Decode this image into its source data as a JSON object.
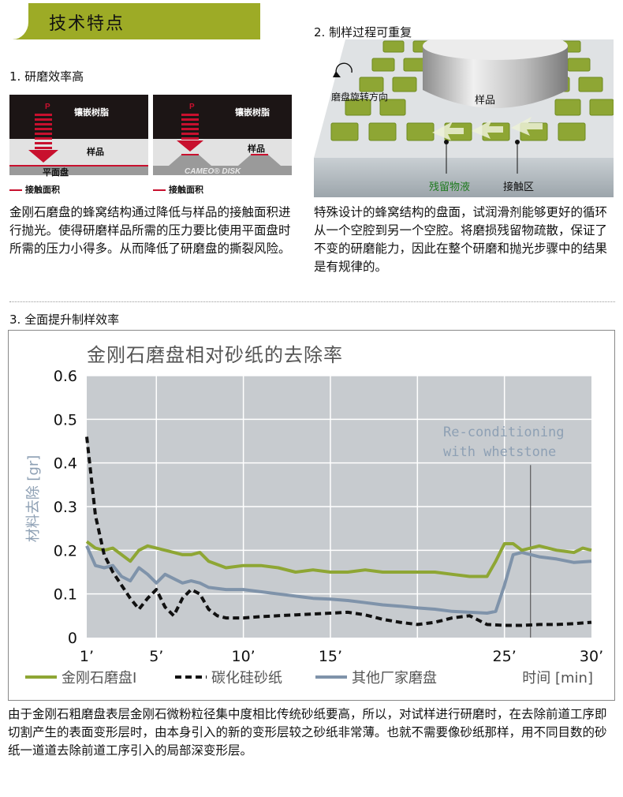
{
  "header": {
    "title": "技术特点"
  },
  "section1": {
    "heading": "1. 研磨效率高",
    "left_panel": {
      "p_label": "P",
      "resin": "镶嵌树脂",
      "sample": "样品",
      "plate": "平面盘",
      "legend": "接触面积"
    },
    "right_panel": {
      "p_label": "P",
      "resin": "镶嵌树脂",
      "sample": "样品",
      "brand": "CAMEO® DISK",
      "legend": "接触面积"
    },
    "paragraph": "金刚石磨盘的蜂窝结构通过降低与样品的接触面积进行抛光。使得研磨样品所需的压力要比使用平面盘时所需的压力小得多。从而降低了研磨盘的撕裂风险。"
  },
  "section2": {
    "heading": "2. 制样过程可重复",
    "labels": {
      "rotation": "磨盘旋转方向",
      "sample": "样品",
      "residue": "残留物液",
      "contact": "接触区"
    },
    "paragraph": "特殊设计的蜂窝结构的盘面，试润滑剂能够更好的循环从一个空腔到另一个空腔。将磨损残留物疏散，保证了不变的研磨能力，因此在整个研磨和抛光步骤中的结果是有规律的。"
  },
  "section3": {
    "heading": "3. 全面提升制样效率",
    "paragraph": "由于金刚石粗磨盘表层金刚石微粉粒径集中度相比传统砂纸要高，所以，对试样进行研磨时，在去除前道工序即切割产生的表面变形层时，由本身引入的新的变形层较之砂纸非常薄。也就不需要像砂纸那样，用不同目数的砂纸一道道去除前道工序引入的局部深变形层。"
  },
  "colors": {
    "accent": "#9dab26",
    "green_series": "#8ea634",
    "blue_series": "#7f93aa",
    "black_series": "#111111",
    "plot_bg": "#c7cbcf",
    "red": "#c8102e"
  },
  "chart_data": {
    "type": "line",
    "title": "金刚石磨盘相对砂纸的去除率",
    "ylabel": "材料去除 [gr]",
    "xlabel": "时间 [min]",
    "ylim": [
      0,
      0.6
    ],
    "xlim": [
      1,
      30
    ],
    "y_ticks": [
      "0",
      "0.1",
      "0.2",
      "0.3",
      "0.4",
      "0.5",
      "0.6"
    ],
    "x_ticks": [
      "1’",
      "5’",
      "10’",
      "15’",
      "25’",
      "30’"
    ],
    "annotation": "Re-conditioning with whetstone",
    "annotation_x": 26.5,
    "grid": true,
    "legend_position": "bottom",
    "series": [
      {
        "name": "金刚石磨盘Ⅰ",
        "style": "solid-green",
        "x": [
          1,
          1.5,
          2,
          2.5,
          3,
          3.5,
          4,
          4.5,
          5,
          5.5,
          6,
          6.5,
          7,
          7.5,
          8,
          9,
          10,
          11,
          12,
          13,
          14,
          15,
          16,
          17,
          18,
          19,
          20,
          21,
          22,
          23,
          24,
          24.5,
          25,
          25.5,
          26,
          26.5,
          27,
          28,
          29,
          29.5,
          30
        ],
        "y": [
          0.22,
          0.205,
          0.2,
          0.205,
          0.19,
          0.175,
          0.2,
          0.21,
          0.205,
          0.2,
          0.195,
          0.19,
          0.19,
          0.195,
          0.175,
          0.16,
          0.165,
          0.165,
          0.16,
          0.15,
          0.155,
          0.15,
          0.15,
          0.155,
          0.15,
          0.15,
          0.15,
          0.15,
          0.145,
          0.14,
          0.14,
          0.175,
          0.215,
          0.215,
          0.2,
          0.205,
          0.21,
          0.2,
          0.195,
          0.205,
          0.2
        ]
      },
      {
        "name": "碳化硅砂纸",
        "style": "dashed-black",
        "x": [
          1,
          1.5,
          2,
          2.5,
          3,
          3.5,
          4,
          4.5,
          5,
          5.5,
          6,
          6.5,
          7,
          7.5,
          8,
          8.5,
          9,
          10,
          11,
          12,
          13,
          14,
          15,
          16,
          17,
          18,
          19,
          20,
          21,
          22,
          23,
          24,
          25,
          26,
          27,
          28,
          29,
          30
        ],
        "y": [
          0.46,
          0.28,
          0.19,
          0.15,
          0.12,
          0.09,
          0.065,
          0.09,
          0.11,
          0.07,
          0.05,
          0.09,
          0.11,
          0.1,
          0.065,
          0.05,
          0.045,
          0.045,
          0.048,
          0.05,
          0.052,
          0.054,
          0.056,
          0.058,
          0.052,
          0.042,
          0.035,
          0.03,
          0.035,
          0.045,
          0.05,
          0.03,
          0.028,
          0.028,
          0.03,
          0.03,
          0.032,
          0.035
        ]
      },
      {
        "name": "其他厂家磨盘",
        "style": "solid-blue",
        "x": [
          1,
          1.5,
          2,
          2.5,
          3,
          3.5,
          4,
          4.5,
          5,
          5.5,
          6,
          6.5,
          7,
          7.5,
          8,
          9,
          10,
          11,
          12,
          13,
          14,
          15,
          16,
          17,
          18,
          19,
          20,
          21,
          22,
          23,
          24,
          24.5,
          25,
          25.5,
          26,
          27,
          28,
          29,
          30
        ],
        "y": [
          0.21,
          0.165,
          0.16,
          0.165,
          0.14,
          0.13,
          0.16,
          0.145,
          0.125,
          0.145,
          0.135,
          0.125,
          0.13,
          0.125,
          0.115,
          0.11,
          0.11,
          0.105,
          0.1,
          0.095,
          0.09,
          0.088,
          0.085,
          0.08,
          0.075,
          0.072,
          0.068,
          0.065,
          0.06,
          0.058,
          0.056,
          0.06,
          0.12,
          0.19,
          0.195,
          0.185,
          0.18,
          0.172,
          0.175
        ]
      }
    ]
  }
}
